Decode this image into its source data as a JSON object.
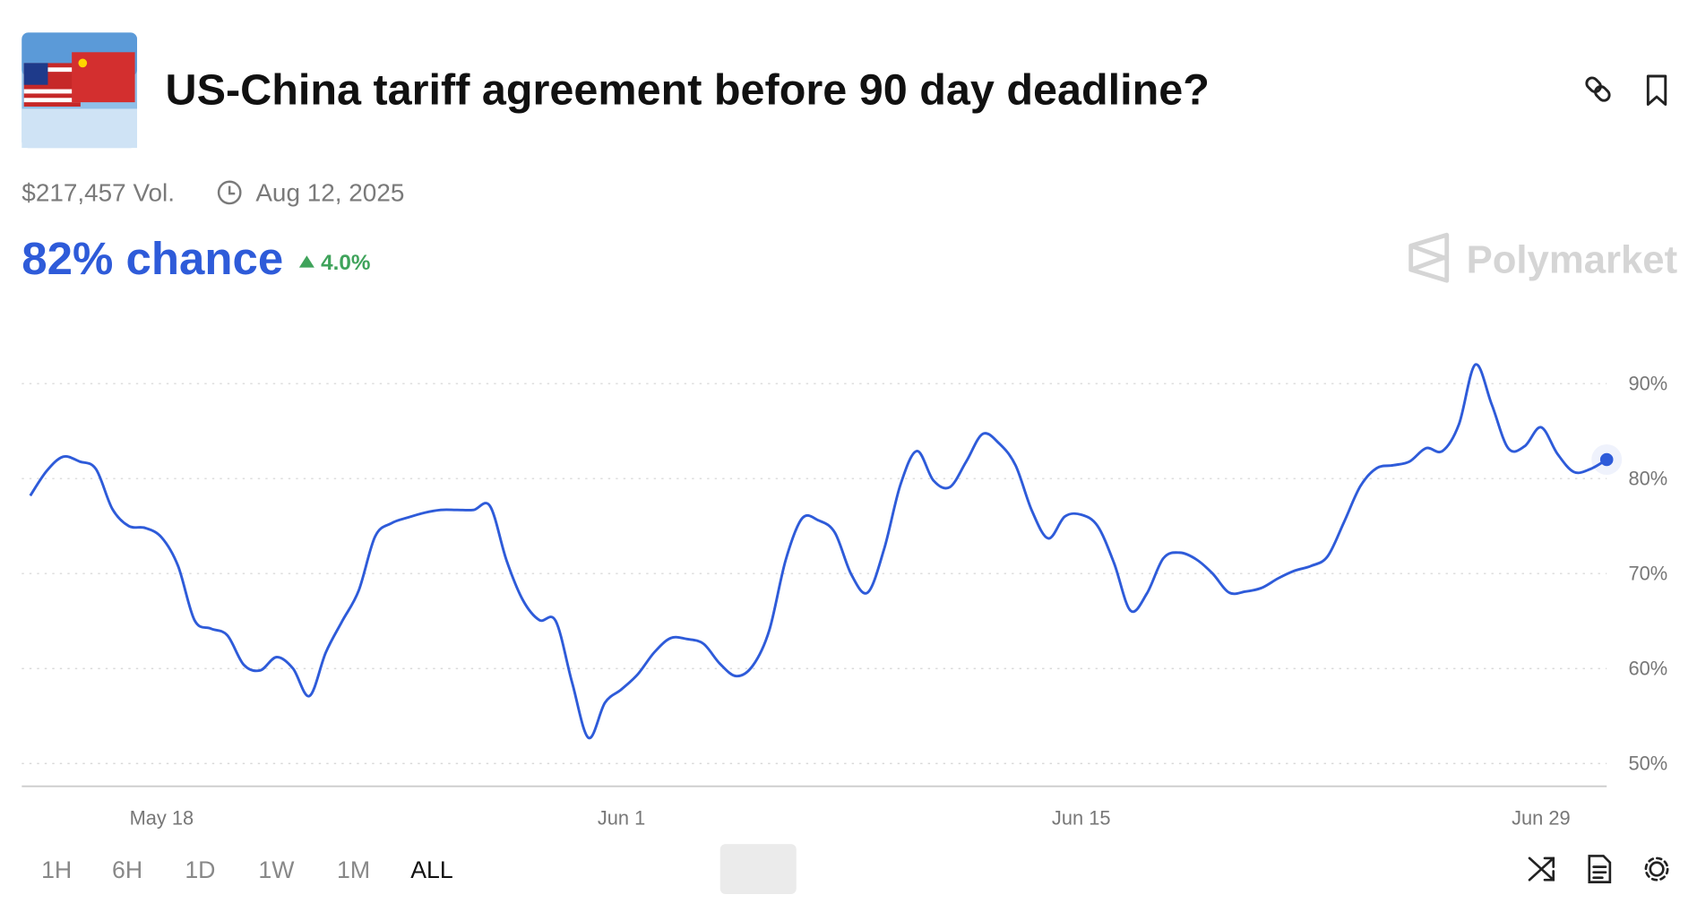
{
  "header": {
    "title": "US-China tariff agreement before 90 day deadline?",
    "volume": "$217,457 Vol.",
    "end_date": "Aug 12, 2025",
    "chance": "82% chance",
    "change": "4.0%",
    "brand": "Polymarket"
  },
  "chart_data": {
    "type": "line",
    "color": "#2e5bd9",
    "grid": true,
    "categories": [
      null,
      null,
      null,
      null,
      null,
      null,
      null,
      null,
      "May 18",
      null,
      null,
      null,
      null,
      null,
      null,
      null,
      null,
      null,
      null,
      null,
      null,
      null,
      null,
      null,
      null,
      null,
      null,
      null,
      null,
      null,
      null,
      null,
      null,
      null,
      null,
      null,
      "Jun 1",
      null,
      null,
      null,
      null,
      null,
      null,
      null,
      null,
      null,
      null,
      null,
      null,
      null,
      null,
      null,
      null,
      null,
      null,
      null,
      null,
      null,
      null,
      null,
      null,
      null,
      null,
      null,
      "Jun 15",
      null,
      null,
      null,
      null,
      null,
      null,
      null,
      null,
      null,
      null,
      null,
      null,
      null,
      null,
      null,
      null,
      null,
      null,
      null,
      null,
      null,
      null,
      null,
      null,
      null,
      null,
      null,
      "Jun 29",
      null,
      null,
      null,
      null
    ],
    "values": [
      78.2,
      80.8,
      82.3,
      81.8,
      81.0,
      76.8,
      75.0,
      74.8,
      73.8,
      70.8,
      65.1,
      64.2,
      63.5,
      60.4,
      59.8,
      61.2,
      60.0,
      57.1,
      61.7,
      65.0,
      68.2,
      73.9,
      75.3,
      75.9,
      76.4,
      76.7,
      76.7,
      76.7,
      77.1,
      71.4,
      67.2,
      65.1,
      65.0,
      58.5,
      52.7,
      56.4,
      57.8,
      59.4,
      61.7,
      63.2,
      63.1,
      62.6,
      60.5,
      59.2,
      60.3,
      64.0,
      71.4,
      75.8,
      75.6,
      74.3,
      69.9,
      68.0,
      72.6,
      79.4,
      82.9,
      79.8,
      79.1,
      81.8,
      84.7,
      83.7,
      81.4,
      76.6,
      73.7,
      76.0,
      76.2,
      75.0,
      71.1,
      66.1,
      67.9,
      71.6,
      72.2,
      71.5,
      70.0,
      68.0,
      68.1,
      68.5,
      69.5,
      70.3,
      70.8,
      71.8,
      75.4,
      79.2,
      81.1,
      81.4,
      81.8,
      83.2,
      82.9,
      85.7,
      92.0,
      87.8,
      83.2,
      83.4,
      85.4,
      82.6,
      80.7,
      81.0,
      82.0
    ],
    "ylim": [
      47.6,
      96
    ],
    "yticks": [
      {
        "value": 50,
        "label": "50%"
      },
      {
        "value": 60,
        "label": "60%"
      },
      {
        "value": 70,
        "label": "70%"
      },
      {
        "value": 80,
        "label": "80%"
      },
      {
        "value": 90,
        "label": "90%"
      }
    ]
  },
  "ranges": {
    "options": [
      "1H",
      "6H",
      "1D",
      "1W",
      "1M",
      "ALL"
    ],
    "active": 5
  }
}
